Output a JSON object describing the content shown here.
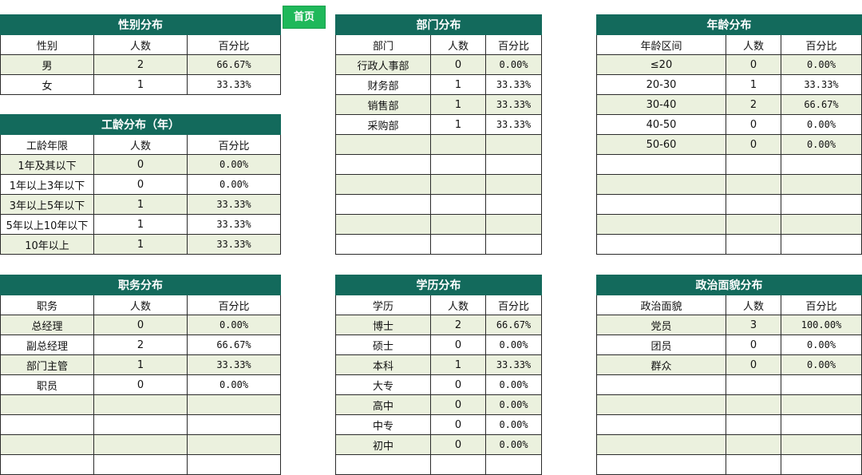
{
  "home_button": {
    "label": "首页"
  },
  "col_count_label": "人数",
  "col_pct_label": "百分比",
  "tables": {
    "gender": {
      "title": "性别分布",
      "col1": "性别",
      "rows": [
        {
          "label": "男",
          "count": "2",
          "pct": "66.67%"
        },
        {
          "label": "女",
          "count": "1",
          "pct": "33.33%"
        }
      ]
    },
    "seniority": {
      "title": "工龄分布（年）",
      "col1": "工龄年限",
      "rows": [
        {
          "label": "1年及其以下",
          "count": "0",
          "pct": "0.00%"
        },
        {
          "label": "1年以上3年以下",
          "count": "0",
          "pct": "0.00%"
        },
        {
          "label": "3年以上5年以下",
          "count": "1",
          "pct": "33.33%"
        },
        {
          "label": "5年以上10年以下",
          "count": "1",
          "pct": "33.33%"
        },
        {
          "label": "10年以上",
          "count": "1",
          "pct": "33.33%"
        }
      ]
    },
    "position": {
      "title": "职务分布",
      "col1": "职务",
      "rows": [
        {
          "label": "总经理",
          "count": "0",
          "pct": "0.00%"
        },
        {
          "label": "副总经理",
          "count": "2",
          "pct": "66.67%"
        },
        {
          "label": "部门主管",
          "count": "1",
          "pct": "33.33%"
        },
        {
          "label": "职员",
          "count": "0",
          "pct": "0.00%"
        }
      ]
    },
    "department": {
      "title": "部门分布",
      "col1": "部门",
      "rows": [
        {
          "label": "行政人事部",
          "count": "0",
          "pct": "0.00%"
        },
        {
          "label": "财务部",
          "count": "1",
          "pct": "33.33%"
        },
        {
          "label": "销售部",
          "count": "1",
          "pct": "33.33%"
        },
        {
          "label": "采购部",
          "count": "1",
          "pct": "33.33%"
        }
      ]
    },
    "education": {
      "title": "学历分布",
      "col1": "学历",
      "rows": [
        {
          "label": "博士",
          "count": "2",
          "pct": "66.67%"
        },
        {
          "label": "硕士",
          "count": "0",
          "pct": "0.00%"
        },
        {
          "label": "本科",
          "count": "1",
          "pct": "33.33%"
        },
        {
          "label": "大专",
          "count": "0",
          "pct": "0.00%"
        },
        {
          "label": "高中",
          "count": "0",
          "pct": "0.00%"
        },
        {
          "label": "中专",
          "count": "0",
          "pct": "0.00%"
        },
        {
          "label": "初中",
          "count": "0",
          "pct": "0.00%"
        }
      ]
    },
    "age": {
      "title": "年龄分布",
      "col1": "年龄区间",
      "rows": [
        {
          "label": "≤20",
          "count": "0",
          "pct": "0.00%"
        },
        {
          "label": "20-30",
          "count": "1",
          "pct": "33.33%"
        },
        {
          "label": "30-40",
          "count": "2",
          "pct": "66.67%"
        },
        {
          "label": "40-50",
          "count": "0",
          "pct": "0.00%"
        },
        {
          "label": "50-60",
          "count": "0",
          "pct": "0.00%"
        }
      ]
    },
    "political": {
      "title": "政治面貌分布",
      "col1": "政治面貌",
      "rows": [
        {
          "label": "党员",
          "count": "3",
          "pct": "100.00%"
        },
        {
          "label": "团员",
          "count": "0",
          "pct": "0.00%"
        },
        {
          "label": "群众",
          "count": "0",
          "pct": "0.00%"
        }
      ]
    }
  }
}
